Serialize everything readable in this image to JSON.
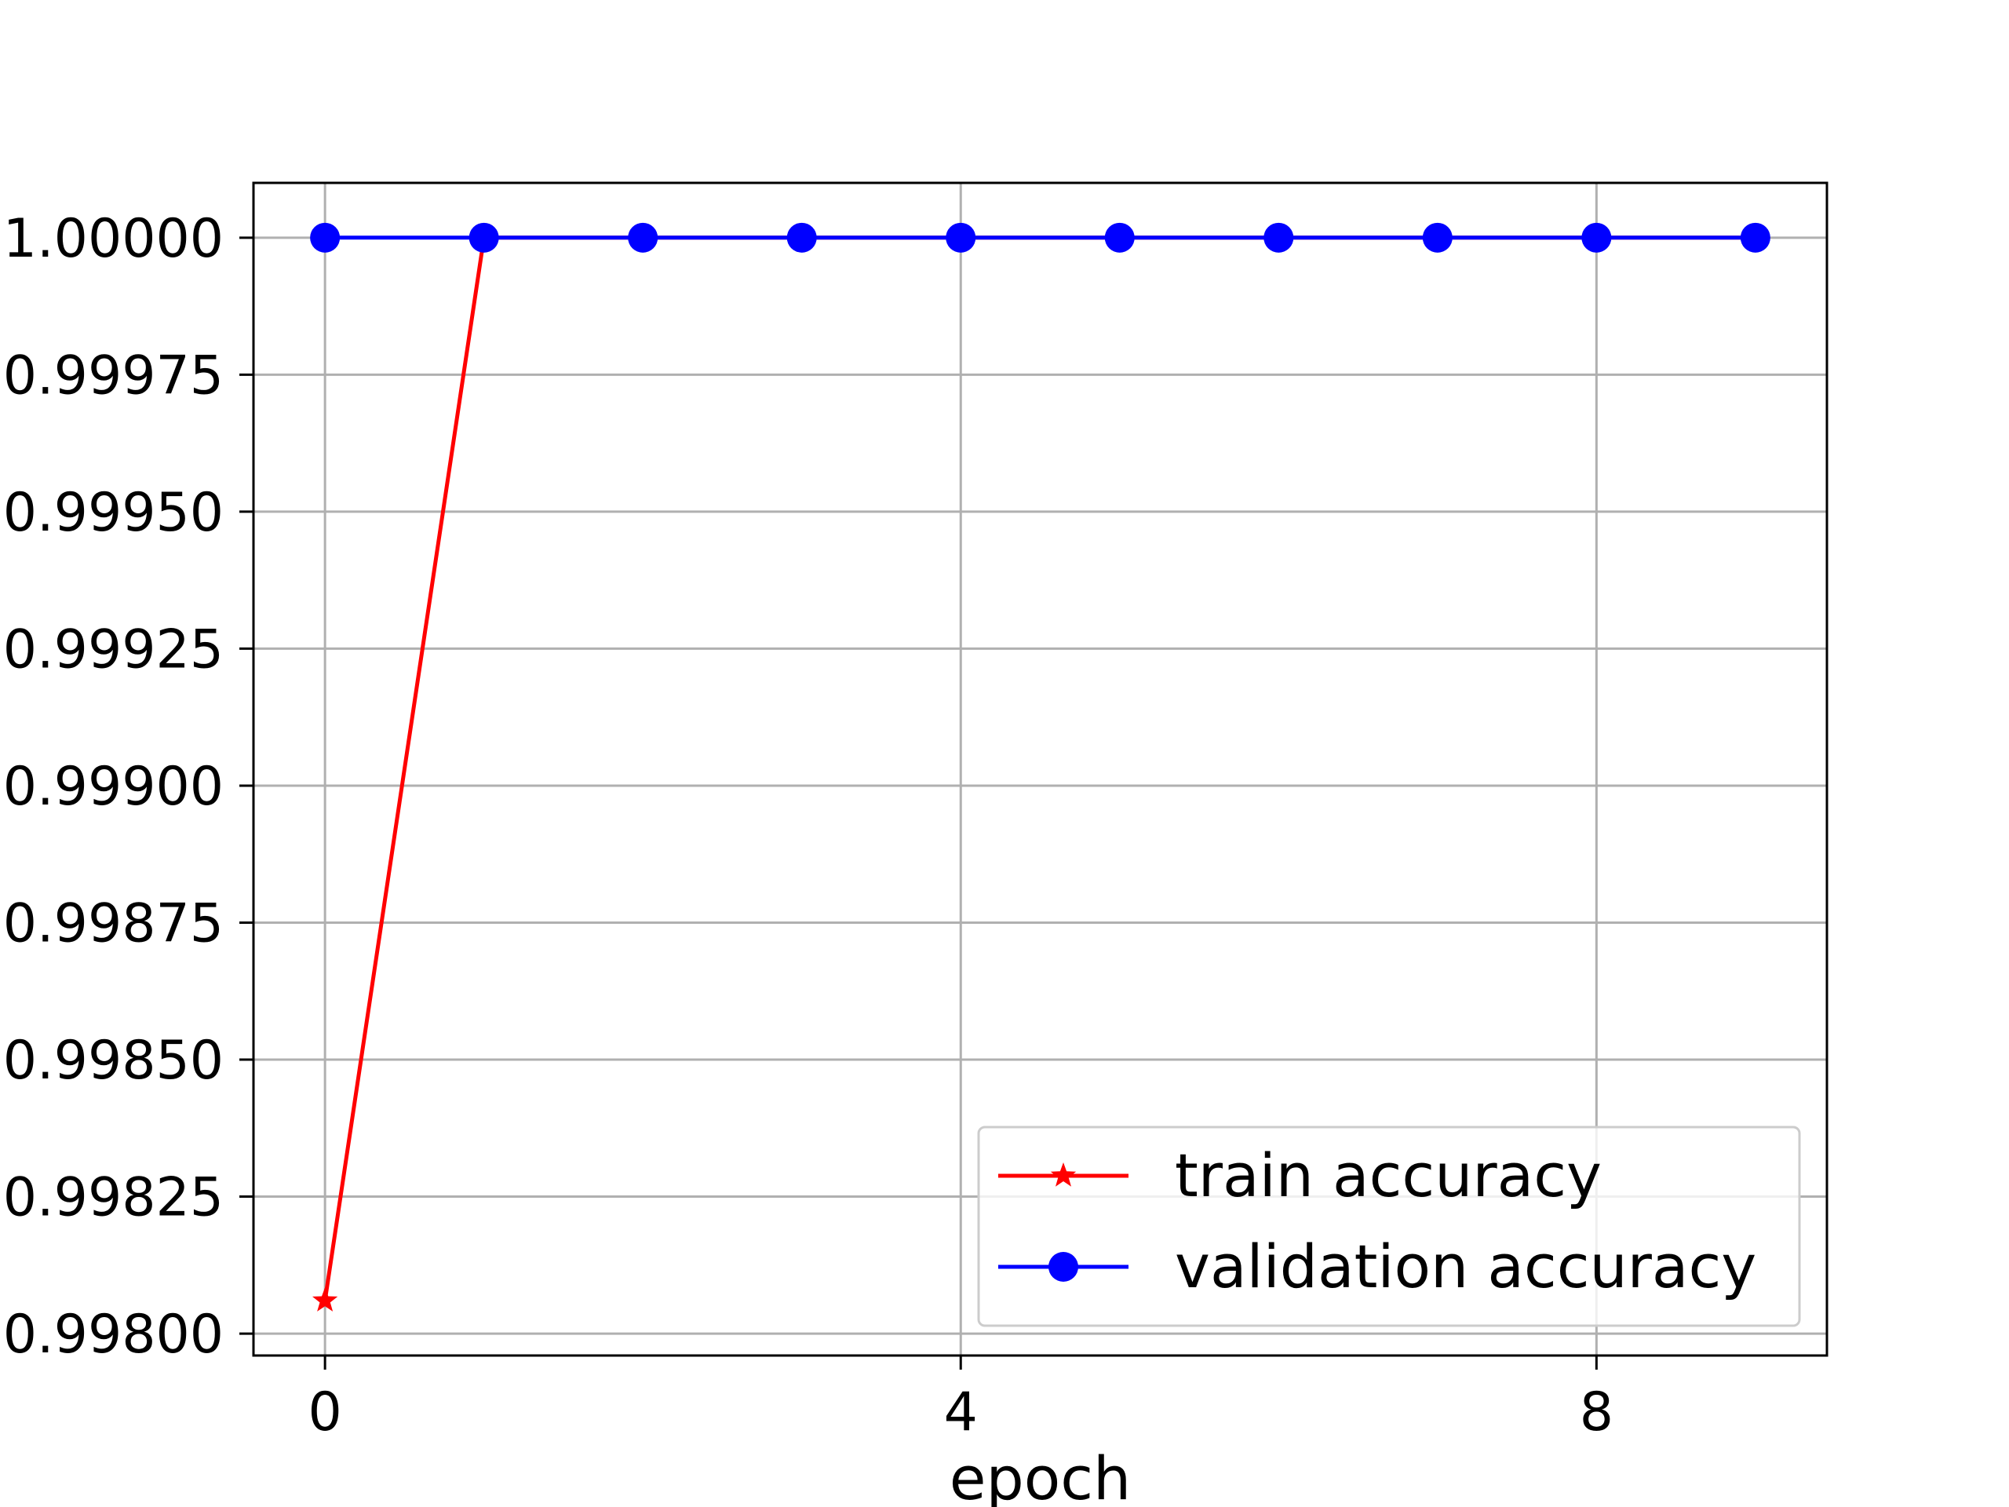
{
  "chart_data": {
    "type": "line",
    "title": "",
    "xlabel": "epoch",
    "ylabel": "",
    "x": [
      0,
      1,
      2,
      3,
      4,
      5,
      6,
      7,
      8,
      9
    ],
    "xticks": [
      0,
      4,
      8
    ],
    "xtick_labels": [
      "0",
      "4",
      "8"
    ],
    "yticks": [
      0.998,
      0.99825,
      0.9985,
      0.99875,
      0.999,
      0.99925,
      0.9995,
      0.99975,
      1.0
    ],
    "ytick_labels": [
      "0.99800",
      "0.99825",
      "0.99850",
      "0.99875",
      "0.99900",
      "0.99925",
      "0.99950",
      "0.99975",
      "1.00000"
    ],
    "xlim": [
      -0.45,
      9.45
    ],
    "ylim": [
      0.99796,
      1.0001
    ],
    "grid": true,
    "legend_position": "lower-right",
    "series": [
      {
        "name": "train accuracy",
        "color": "#ff0000",
        "marker": "star",
        "values": [
          0.99806,
          1.0,
          1.0,
          1.0,
          1.0,
          1.0,
          1.0,
          1.0,
          1.0,
          1.0
        ]
      },
      {
        "name": "validation accuracy",
        "color": "#0000ff",
        "marker": "circle",
        "values": [
          1.0,
          1.0,
          1.0,
          1.0,
          1.0,
          1.0,
          1.0,
          1.0,
          1.0,
          1.0
        ]
      }
    ]
  }
}
